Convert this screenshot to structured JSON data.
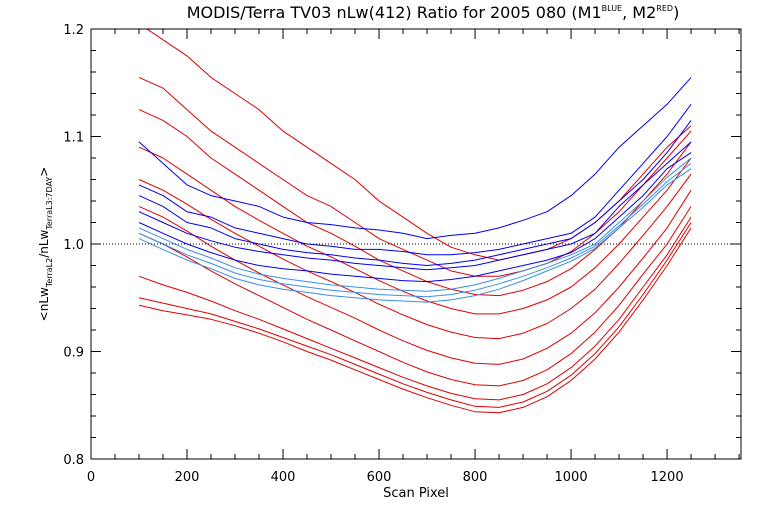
{
  "chart_data": {
    "type": "line",
    "title": "MODIS/Terra TV03 nLw(412) Ratio for 2005 080 (M1",
    "title_sup1": "BLUE",
    "title_mid": ", M2",
    "title_sup2": "RED",
    "title_end": ")",
    "xlabel": "Scan Pixel",
    "ylabel_parts": [
      "<nLw",
      "TerraL2",
      "/nLw",
      "TerraL3:7DAY",
      ">"
    ],
    "xlim": [
      0,
      1354
    ],
    "ylim": [
      0.8,
      1.2
    ],
    "x_ticks": [
      0,
      200,
      400,
      600,
      800,
      1000,
      1200
    ],
    "y_ticks": [
      "0.8",
      "0.9",
      "1.0",
      "1.1",
      "1.2"
    ],
    "reference_line": 1.0,
    "colors": {
      "blue": "#0000ee",
      "lightblue": "#3a8ee8",
      "red": "#dd0000",
      "axis": "#000000"
    },
    "x": [
      100,
      150,
      200,
      250,
      300,
      350,
      400,
      450,
      500,
      550,
      600,
      650,
      700,
      750,
      800,
      850,
      900,
      950,
      1000,
      1050,
      1100,
      1150,
      1200,
      1250
    ],
    "series": [
      {
        "color": "blue",
        "values": [
          1.095,
          1.075,
          1.055,
          1.045,
          1.04,
          1.035,
          1.025,
          1.02,
          1.018,
          1.015,
          1.013,
          1.01,
          1.005,
          1.008,
          1.01,
          1.015,
          1.022,
          1.03,
          1.045,
          1.065,
          1.09,
          1.11,
          1.13,
          1.155
        ]
      },
      {
        "color": "blue",
        "values": [
          1.055,
          1.045,
          1.03,
          1.025,
          1.015,
          1.01,
          1.005,
          1.0,
          0.998,
          0.995,
          0.995,
          0.993,
          0.99,
          0.99,
          0.992,
          0.995,
          1.0,
          1.005,
          1.01,
          1.025,
          1.05,
          1.075,
          1.1,
          1.13
        ]
      },
      {
        "color": "blue",
        "values": [
          1.045,
          1.035,
          1.02,
          1.015,
          1.005,
          1.0,
          0.995,
          0.992,
          0.99,
          0.987,
          0.985,
          0.982,
          0.98,
          0.982,
          0.985,
          0.99,
          0.995,
          1.0,
          1.005,
          1.02,
          1.04,
          1.06,
          1.085,
          1.115
        ]
      },
      {
        "color": "blue",
        "values": [
          1.03,
          1.02,
          1.01,
          1.003,
          0.997,
          0.993,
          0.99,
          0.987,
          0.985,
          0.982,
          0.98,
          0.978,
          0.976,
          0.978,
          0.98,
          0.985,
          0.99,
          0.995,
          1.0,
          1.01,
          1.035,
          1.055,
          1.075,
          1.095
        ]
      },
      {
        "color": "blue",
        "values": [
          1.02,
          1.01,
          1.0,
          0.992,
          0.985,
          0.98,
          0.977,
          0.975,
          0.972,
          0.97,
          0.968,
          0.966,
          0.965,
          0.967,
          0.97,
          0.975,
          0.98,
          0.985,
          0.992,
          1.005,
          1.025,
          1.045,
          1.07,
          1.085
        ]
      },
      {
        "color": "lightblue",
        "values": [
          1.015,
          1.005,
          0.995,
          0.987,
          0.978,
          0.972,
          0.968,
          0.965,
          0.962,
          0.96,
          0.958,
          0.957,
          0.956,
          0.958,
          0.962,
          0.968,
          0.975,
          0.982,
          0.99,
          1.0,
          1.02,
          1.04,
          1.062,
          1.08
        ]
      },
      {
        "color": "lightblue",
        "values": [
          1.01,
          1.0,
          0.99,
          0.982,
          0.973,
          0.967,
          0.963,
          0.96,
          0.957,
          0.955,
          0.953,
          0.952,
          0.951,
          0.953,
          0.957,
          0.963,
          0.97,
          0.978,
          0.987,
          0.998,
          1.017,
          1.037,
          1.058,
          1.075
        ]
      },
      {
        "color": "lightblue",
        "values": [
          1.005,
          0.995,
          0.985,
          0.977,
          0.968,
          0.962,
          0.958,
          0.955,
          0.952,
          0.95,
          0.948,
          0.947,
          0.946,
          0.948,
          0.952,
          0.958,
          0.966,
          0.975,
          0.984,
          0.996,
          1.015,
          1.034,
          1.055,
          1.07
        ]
      },
      {
        "color": "red",
        "values": [
          1.205,
          1.19,
          1.175,
          1.155,
          1.14,
          1.125,
          1.105,
          1.09,
          1.075,
          1.06,
          1.04,
          1.025,
          1.01,
          0.997,
          0.99,
          0.985,
          0.99,
          0.995,
          1.005,
          1.02,
          1.04,
          1.065,
          1.09,
          1.11
        ]
      },
      {
        "color": "red",
        "values": [
          1.155,
          1.145,
          1.125,
          1.105,
          1.09,
          1.075,
          1.06,
          1.045,
          1.035,
          1.02,
          1.005,
          0.995,
          0.985,
          0.975,
          0.97,
          0.97,
          0.975,
          0.982,
          0.993,
          1.01,
          1.03,
          1.055,
          1.08,
          1.105
        ]
      },
      {
        "color": "red",
        "values": [
          1.125,
          1.115,
          1.1,
          1.08,
          1.065,
          1.05,
          1.035,
          1.02,
          1.01,
          0.998,
          0.985,
          0.975,
          0.965,
          0.958,
          0.953,
          0.952,
          0.957,
          0.965,
          0.977,
          0.995,
          1.015,
          1.04,
          1.065,
          1.095
        ]
      },
      {
        "color": "red",
        "values": [
          1.09,
          1.08,
          1.065,
          1.05,
          1.035,
          1.022,
          1.01,
          0.998,
          0.988,
          0.977,
          0.966,
          0.956,
          0.947,
          0.94,
          0.935,
          0.935,
          0.94,
          0.948,
          0.96,
          0.978,
          1.0,
          1.025,
          1.05,
          1.08
        ]
      },
      {
        "color": "red",
        "values": [
          1.06,
          1.05,
          1.037,
          1.023,
          1.01,
          0.998,
          0.986,
          0.975,
          0.965,
          0.955,
          0.944,
          0.934,
          0.925,
          0.918,
          0.913,
          0.912,
          0.917,
          0.926,
          0.94,
          0.958,
          0.982,
          1.008,
          1.035,
          1.065
        ]
      },
      {
        "color": "red",
        "values": [
          1.035,
          1.025,
          1.012,
          0.998,
          0.985,
          0.973,
          0.962,
          0.951,
          0.941,
          0.931,
          0.92,
          0.91,
          0.901,
          0.894,
          0.889,
          0.888,
          0.893,
          0.903,
          0.917,
          0.936,
          0.96,
          0.987,
          1.015,
          1.05
        ]
      },
      {
        "color": "red",
        "values": [
          1.01,
          1.0,
          0.988,
          0.975,
          0.963,
          0.952,
          0.941,
          0.93,
          0.92,
          0.91,
          0.9,
          0.89,
          0.881,
          0.874,
          0.869,
          0.868,
          0.873,
          0.883,
          0.898,
          0.918,
          0.943,
          0.972,
          1.0,
          1.035
        ]
      },
      {
        "color": "red",
        "values": [
          0.97,
          0.962,
          0.955,
          0.947,
          0.938,
          0.93,
          0.921,
          0.912,
          0.903,
          0.894,
          0.885,
          0.876,
          0.868,
          0.861,
          0.856,
          0.855,
          0.86,
          0.87,
          0.885,
          0.905,
          0.93,
          0.96,
          0.99,
          1.025
        ]
      },
      {
        "color": "red",
        "values": [
          0.95,
          0.945,
          0.94,
          0.935,
          0.928,
          0.921,
          0.913,
          0.905,
          0.897,
          0.888,
          0.879,
          0.87,
          0.862,
          0.855,
          0.849,
          0.848,
          0.853,
          0.863,
          0.878,
          0.898,
          0.923,
          0.953,
          0.985,
          1.02
        ]
      },
      {
        "color": "red",
        "values": [
          0.943,
          0.938,
          0.934,
          0.93,
          0.924,
          0.917,
          0.909,
          0.9,
          0.892,
          0.883,
          0.874,
          0.865,
          0.857,
          0.85,
          0.844,
          0.843,
          0.848,
          0.858,
          0.873,
          0.893,
          0.918,
          0.948,
          0.98,
          1.015
        ]
      }
    ]
  }
}
